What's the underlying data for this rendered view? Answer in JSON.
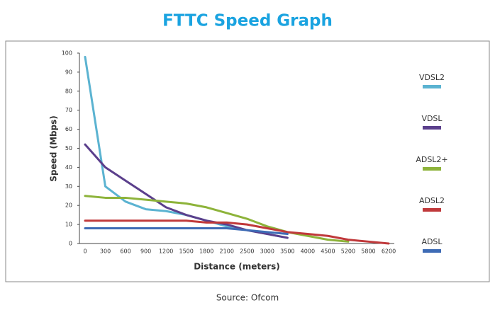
{
  "chart_data": {
    "type": "line",
    "title": "FTTC Speed Graph",
    "x_label": "Distance (meters)",
    "y_label": "Speed (Mbps)",
    "source": "Source: Ofcom",
    "categories": [
      0,
      300,
      600,
      900,
      1200,
      1500,
      1800,
      2100,
      2500,
      3000,
      3500,
      4000,
      4500,
      5200,
      5800,
      6200
    ],
    "series": [
      {
        "name": "VDSL2",
        "color": "#5bb3d1",
        "values": [
          98,
          30,
          22,
          18,
          17,
          15,
          12,
          9,
          7,
          5,
          3,
          null,
          null,
          null,
          null,
          null
        ]
      },
      {
        "name": "VDSL",
        "color": "#5b3f8c",
        "values": [
          52,
          40,
          33,
          26,
          19,
          15,
          12,
          10,
          7,
          5,
          3,
          null,
          null,
          null,
          null,
          null
        ]
      },
      {
        "name": "ADSL2+",
        "color": "#8db33a",
        "values": [
          25,
          24,
          24,
          23,
          22,
          21,
          19,
          16,
          13,
          9,
          6,
          4,
          2,
          1,
          null,
          null
        ]
      },
      {
        "name": "ADSL2",
        "color": "#c0393b",
        "values": [
          12,
          12,
          12,
          12,
          12,
          12,
          11,
          11,
          10,
          8,
          6,
          5,
          4,
          2,
          1,
          0
        ]
      },
      {
        "name": "ADSL",
        "color": "#3e6bb5",
        "values": [
          8,
          8,
          8,
          8,
          8,
          8,
          8,
          8,
          7,
          6,
          5,
          null,
          null,
          null,
          null,
          null
        ]
      }
    ],
    "ylim": [
      0,
      100
    ],
    "yticks": [
      0,
      10,
      20,
      30,
      40,
      50,
      60,
      70,
      80,
      90,
      100
    ],
    "grid": false,
    "legend": "right"
  }
}
